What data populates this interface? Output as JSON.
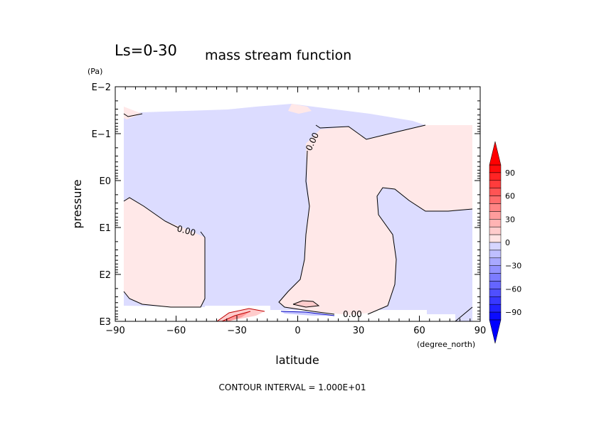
{
  "chart_data": {
    "type": "contour",
    "title": "Ls=0-30",
    "subtitle": "mass stream function",
    "xlabel": "latitude",
    "x_unit": "(degree_north)",
    "ylabel": "pressure",
    "y_unit": "(Pa)",
    "x_range": [
      -90,
      90
    ],
    "x_ticks": [
      -90,
      -60,
      -30,
      0,
      30,
      60,
      90
    ],
    "x_tick_labels": [
      "−90",
      "−60",
      "−30",
      "0",
      "30",
      "60",
      "90"
    ],
    "y_scale": "log",
    "y_range": [
      0.01,
      1000
    ],
    "y_ticks": [
      0.01,
      0.1,
      1,
      10,
      100,
      1000
    ],
    "y_tick_labels": [
      "E−2",
      "E−1",
      "E0",
      "E1",
      "E2",
      "E3"
    ],
    "contour_labels": [
      "0.00",
      "0.00",
      "0.00"
    ],
    "colorbar": {
      "tick_values": [
        90,
        60,
        30,
        0,
        -30,
        -60,
        -90
      ],
      "tick_labels": [
        "90",
        "60",
        "30",
        "0",
        "−30",
        "−60",
        "−90"
      ],
      "positive_color": "#ff0000",
      "negative_color": "#0000ff"
    },
    "footer": "CONTOUR INTERVAL = 1.000E+01"
  }
}
